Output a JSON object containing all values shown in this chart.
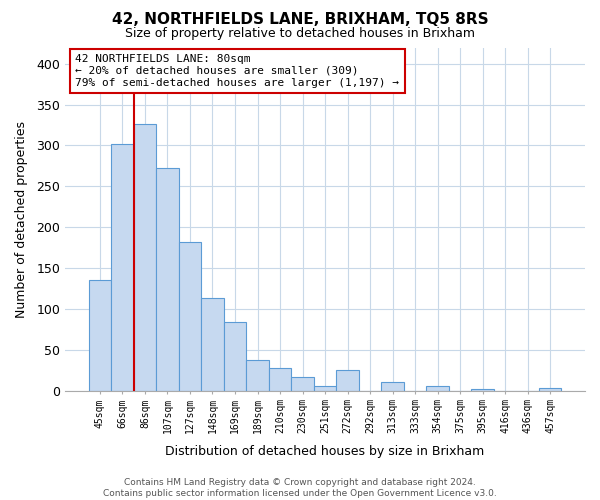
{
  "title": "42, NORTHFIELDS LANE, BRIXHAM, TQ5 8RS",
  "subtitle": "Size of property relative to detached houses in Brixham",
  "xlabel": "Distribution of detached houses by size in Brixham",
  "ylabel": "Number of detached properties",
  "categories": [
    "45sqm",
    "66sqm",
    "86sqm",
    "107sqm",
    "127sqm",
    "148sqm",
    "169sqm",
    "189sqm",
    "210sqm",
    "230sqm",
    "251sqm",
    "272sqm",
    "292sqm",
    "313sqm",
    "333sqm",
    "354sqm",
    "375sqm",
    "395sqm",
    "416sqm",
    "436sqm",
    "457sqm"
  ],
  "values": [
    135,
    302,
    326,
    272,
    182,
    113,
    84,
    37,
    27,
    17,
    5,
    25,
    0,
    10,
    0,
    5,
    0,
    2,
    0,
    0,
    3
  ],
  "bar_color": "#c6d9f0",
  "bar_edge_color": "#5b9bd5",
  "marker_line_color": "#cc0000",
  "marker_bar_index": 2,
  "annotation_text_line1": "42 NORTHFIELDS LANE: 80sqm",
  "annotation_text_line2": "← 20% of detached houses are smaller (309)",
  "annotation_text_line3": "79% of semi-detached houses are larger (1,197) →",
  "ylim": [
    0,
    420
  ],
  "yticks": [
    0,
    50,
    100,
    150,
    200,
    250,
    300,
    350,
    400
  ],
  "footer_line1": "Contains HM Land Registry data © Crown copyright and database right 2024.",
  "footer_line2": "Contains public sector information licensed under the Open Government Licence v3.0.",
  "background_color": "#ffffff",
  "grid_color": "#c8d8e8",
  "annotation_box_edgecolor": "#cc0000",
  "annotation_box_facecolor": "#ffffff"
}
